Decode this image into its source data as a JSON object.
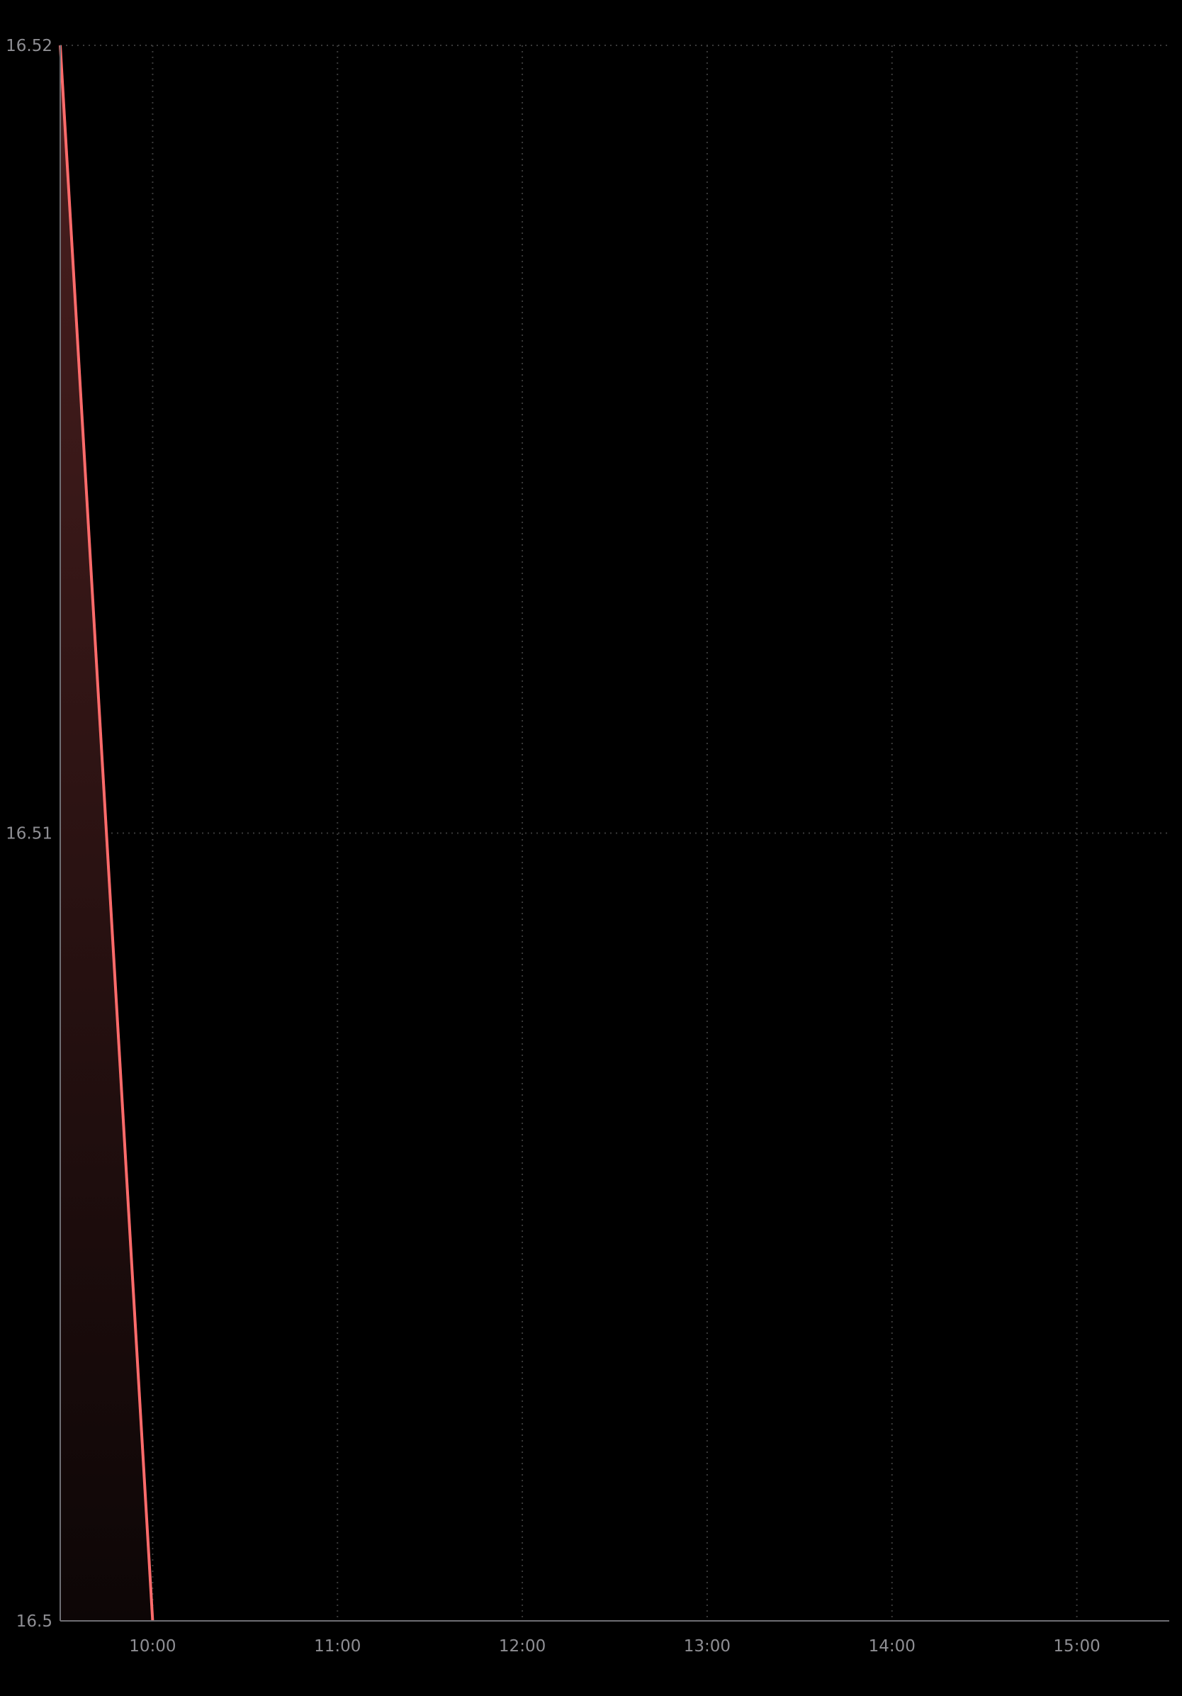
{
  "chart_data": {
    "type": "area",
    "title": "",
    "xlabel": "",
    "ylabel": "",
    "x_ticks": [
      "10:00",
      "11:00",
      "12:00",
      "13:00",
      "14:00",
      "15:00"
    ],
    "y_ticks": [
      "16.5",
      "16.51",
      "16.52"
    ],
    "xlim": [
      "09:30",
      "15:30"
    ],
    "ylim": [
      16.5,
      16.52
    ],
    "series": [
      {
        "x": [
          "09:30",
          "10:00"
        ],
        "values": [
          16.52,
          16.5
        ]
      }
    ],
    "grid": true,
    "grid_style": "dotted",
    "colors": {
      "background": "#000000",
      "line": "#ff6b6b",
      "fill_top": "#4a1f1f",
      "fill_bottom": "#0d0606",
      "grid": "#3a3a3a",
      "axis": "#8e8e93",
      "tick_label": "#8e8e93"
    }
  }
}
